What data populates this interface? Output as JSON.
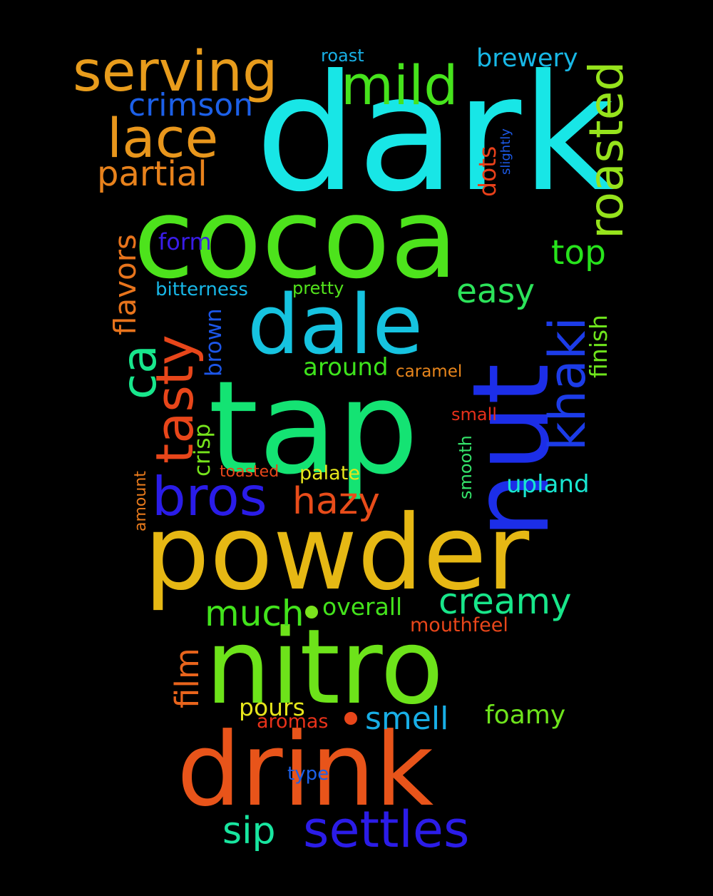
{
  "background": "#000000",
  "words": [
    {
      "text": "dark",
      "color": "#18e6e6"
    },
    {
      "text": "cocoa",
      "color": "#4de31c"
    },
    {
      "text": "tap",
      "color": "#14e373"
    },
    {
      "text": "nut",
      "color": "#1c2ee8"
    },
    {
      "text": "powder",
      "color": "#e6b814"
    },
    {
      "text": "nitro",
      "color": "#6de31a"
    },
    {
      "text": "drink",
      "color": "#e8541a"
    },
    {
      "text": "dale",
      "color": "#16c3e0"
    },
    {
      "text": "serving",
      "color": "#e89c1c"
    },
    {
      "text": "mild",
      "color": "#46e31c"
    },
    {
      "text": "lace",
      "color": "#e8961c"
    },
    {
      "text": "bros",
      "color": "#2a1ce8"
    },
    {
      "text": "tasty",
      "color": "#e8461a"
    },
    {
      "text": "ca",
      "color": "#18e68c"
    },
    {
      "text": "khaki",
      "color": "#1c3ce8"
    },
    {
      "text": "roasted",
      "color": "#96e31c"
    },
    {
      "text": "settles",
      "color": "#2b1ce8"
    },
    {
      "text": "partial",
      "color": "#e8821c"
    },
    {
      "text": "crimson",
      "color": "#1c60e8"
    },
    {
      "text": "brewery",
      "color": "#18b8e6"
    },
    {
      "text": "top",
      "color": "#27e31c"
    },
    {
      "text": "easy",
      "color": "#2ce35a"
    },
    {
      "text": "flavors",
      "color": "#e8741c"
    },
    {
      "text": "hazy",
      "color": "#e84c1a"
    },
    {
      "text": "creamy",
      "color": "#18e68a"
    },
    {
      "text": "much",
      "color": "#42e31c"
    },
    {
      "text": "film",
      "color": "#e8641c"
    },
    {
      "text": "smell",
      "color": "#18aee6"
    },
    {
      "text": "foamy",
      "color": "#6ee31c"
    },
    {
      "text": "sip",
      "color": "#18e6a0"
    },
    {
      "text": "upland",
      "color": "#18e6d0"
    },
    {
      "text": "form",
      "color": "#3a1ce8"
    },
    {
      "text": "finish",
      "color": "#6ee31c"
    },
    {
      "text": "around",
      "color": "#3ee31c"
    },
    {
      "text": "overall",
      "color": "#44e31c"
    },
    {
      "text": "brown",
      "color": "#1c56e8"
    },
    {
      "text": "crisp",
      "color": "#76e31c"
    },
    {
      "text": "dots",
      "color": "#e8401a"
    },
    {
      "text": "bitterness",
      "color": "#18b6e6"
    },
    {
      "text": "pretty",
      "color": "#52e31c"
    },
    {
      "text": "roast",
      "color": "#18b0e6"
    },
    {
      "text": "caramel",
      "color": "#e8861c"
    },
    {
      "text": "small",
      "color": "#e8301a"
    },
    {
      "text": "smooth",
      "color": "#34e36a"
    },
    {
      "text": "palate",
      "color": "#e6e61c"
    },
    {
      "text": "toasted",
      "color": "#e8461a"
    },
    {
      "text": "mouthfeel",
      "color": "#e8461a"
    },
    {
      "text": "pours",
      "color": "#e6e61c"
    },
    {
      "text": "aromas",
      "color": "#e8321a"
    },
    {
      "text": "type",
      "color": "#1c60e8"
    },
    {
      "text": "amount",
      "color": "#e87a1c"
    },
    {
      "text": "slightly",
      "color": "#1c5ae8"
    },
    {
      "text": "",
      "color": "#7ae31c"
    },
    {
      "text": "",
      "color": "#e8461a"
    }
  ]
}
